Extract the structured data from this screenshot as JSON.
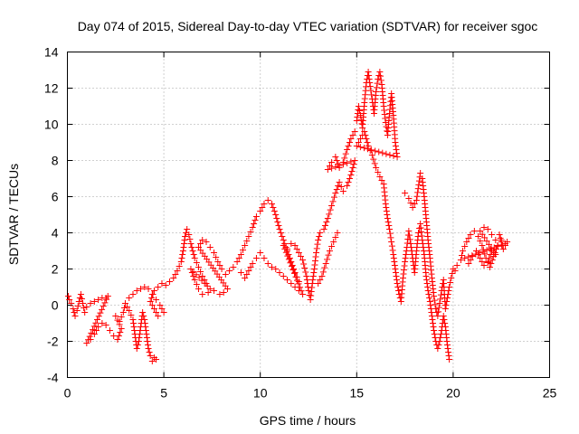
{
  "chart_data": {
    "type": "scatter",
    "title": "Day 074 of 2015, Sidereal Day-to-day VTEC variation (SDTVAR) for receiver sgoc",
    "xlabel": "GPS time / hours",
    "ylabel": "SDTVAR / TECUs",
    "xlim": [
      0,
      25
    ],
    "ylim": [
      -4,
      14
    ],
    "xticks": [
      0,
      5,
      10,
      15,
      20,
      25
    ],
    "yticks": [
      -4,
      -2,
      0,
      2,
      4,
      6,
      8,
      10,
      12,
      14
    ],
    "grid": true,
    "marker": "+",
    "color": "#ff0000",
    "series": [
      {
        "name": "SDTVAR",
        "points": [
          [
            0.05,
            0.5
          ],
          [
            0.1,
            0.3
          ],
          [
            0.2,
            0.1
          ],
          [
            0.3,
            -0.2
          ],
          [
            0.4,
            -0.6
          ],
          [
            0.5,
            -0.3
          ],
          [
            0.6,
            0.2
          ],
          [
            0.7,
            0.6
          ],
          [
            0.8,
            0.1
          ],
          [
            0.9,
            -0.4
          ],
          [
            1.0,
            -0.1
          ],
          [
            1.2,
            0.1
          ],
          [
            1.4,
            0.2
          ],
          [
            1.6,
            0.3
          ],
          [
            1.8,
            0.4
          ],
          [
            2.0,
            0.4
          ],
          [
            2.1,
            0.5
          ],
          [
            1.0,
            -2.1
          ],
          [
            1.2,
            -1.9
          ],
          [
            1.4,
            -1.6
          ],
          [
            1.6,
            -1.2
          ],
          [
            1.8,
            -1.0
          ],
          [
            2.0,
            -1.1
          ],
          [
            2.2,
            -1.4
          ],
          [
            2.4,
            -1.7
          ],
          [
            2.6,
            -1.9
          ],
          [
            2.8,
            -1.3
          ],
          [
            2.5,
            -0.6
          ],
          [
            2.7,
            -0.9
          ],
          [
            2.9,
            -0.4
          ],
          [
            3.0,
            0.1
          ],
          [
            3.2,
            -0.3
          ],
          [
            3.4,
            -0.8
          ],
          [
            3.5,
            -1.6
          ],
          [
            3.6,
            -2.4
          ],
          [
            3.7,
            -2.0
          ],
          [
            3.8,
            -1.2
          ],
          [
            3.9,
            -0.4
          ],
          [
            4.0,
            -0.8
          ],
          [
            4.1,
            -1.6
          ],
          [
            4.2,
            -2.4
          ],
          [
            4.3,
            -2.8
          ],
          [
            4.4,
            -3.1
          ],
          [
            4.5,
            -2.9
          ],
          [
            4.6,
            -3.0
          ],
          [
            3.2,
            0.4
          ],
          [
            3.4,
            0.6
          ],
          [
            3.6,
            0.8
          ],
          [
            3.8,
            0.9
          ],
          [
            4.0,
            1.0
          ],
          [
            4.2,
            0.9
          ],
          [
            4.4,
            0.6
          ],
          [
            4.6,
            0.3
          ],
          [
            4.8,
            0.0
          ],
          [
            5.0,
            -0.4
          ],
          [
            4.7,
            -0.6
          ],
          [
            4.3,
            0.2
          ],
          [
            4.5,
            0.8
          ],
          [
            4.7,
            1.0
          ],
          [
            4.9,
            1.2
          ],
          [
            5.1,
            1.1
          ],
          [
            5.3,
            1.3
          ],
          [
            5.5,
            1.5
          ],
          [
            5.7,
            1.9
          ],
          [
            5.9,
            2.4
          ],
          [
            6.0,
            3.0
          ],
          [
            6.1,
            3.8
          ],
          [
            6.2,
            4.2
          ],
          [
            6.3,
            3.9
          ],
          [
            6.4,
            3.4
          ],
          [
            6.5,
            3.0
          ],
          [
            6.6,
            2.6
          ],
          [
            6.8,
            2.1
          ],
          [
            7.0,
            1.6
          ],
          [
            7.2,
            1.2
          ],
          [
            7.4,
            0.9
          ],
          [
            6.4,
            2.0
          ],
          [
            6.6,
            1.4
          ],
          [
            6.8,
            0.9
          ],
          [
            7.0,
            0.6
          ],
          [
            7.3,
            0.7
          ],
          [
            7.6,
            0.8
          ],
          [
            7.9,
            0.6
          ],
          [
            8.1,
            0.7
          ],
          [
            8.3,
            0.9
          ],
          [
            6.8,
            3.2
          ],
          [
            7.0,
            3.6
          ],
          [
            7.2,
            3.5
          ],
          [
            7.4,
            3.2
          ],
          [
            7.6,
            2.9
          ],
          [
            7.8,
            2.4
          ],
          [
            8.0,
            2.0
          ],
          [
            8.2,
            1.7
          ],
          [
            8.4,
            1.9
          ],
          [
            8.6,
            2.1
          ],
          [
            8.8,
            2.4
          ],
          [
            9.0,
            2.8
          ],
          [
            9.2,
            3.3
          ],
          [
            9.4,
            3.8
          ],
          [
            9.6,
            4.3
          ],
          [
            9.8,
            4.9
          ],
          [
            10.0,
            5.2
          ],
          [
            10.2,
            5.6
          ],
          [
            10.4,
            5.8
          ],
          [
            10.6,
            5.6
          ],
          [
            10.8,
            5.0
          ],
          [
            11.0,
            4.2
          ],
          [
            11.2,
            3.6
          ],
          [
            11.4,
            3.0
          ],
          [
            11.6,
            2.4
          ],
          [
            11.8,
            1.8
          ],
          [
            12.0,
            1.3
          ],
          [
            9.0,
            1.8
          ],
          [
            9.2,
            1.5
          ],
          [
            9.4,
            1.9
          ],
          [
            9.6,
            2.3
          ],
          [
            9.8,
            2.6
          ],
          [
            10.0,
            2.9
          ],
          [
            10.2,
            2.6
          ],
          [
            10.4,
            2.3
          ],
          [
            10.6,
            2.1
          ],
          [
            10.8,
            2.0
          ],
          [
            11.0,
            1.8
          ],
          [
            11.2,
            1.6
          ],
          [
            11.4,
            1.4
          ],
          [
            11.6,
            1.2
          ],
          [
            11.8,
            1.0
          ],
          [
            12.0,
            0.8
          ],
          [
            12.2,
            0.6
          ],
          [
            11.2,
            3.3
          ],
          [
            11.4,
            3.1
          ],
          [
            11.6,
            3.4
          ],
          [
            11.8,
            3.3
          ],
          [
            12.0,
            2.9
          ],
          [
            12.2,
            2.5
          ],
          [
            12.4,
            1.6
          ],
          [
            12.5,
            0.8
          ],
          [
            12.6,
            0.3
          ],
          [
            12.7,
            1.2
          ],
          [
            12.8,
            2.0
          ],
          [
            12.9,
            2.9
          ],
          [
            13.0,
            3.6
          ],
          [
            13.1,
            4.0
          ],
          [
            13.3,
            4.2
          ],
          [
            13.5,
            4.8
          ],
          [
            13.7,
            5.5
          ],
          [
            13.9,
            6.2
          ],
          [
            14.1,
            6.8
          ],
          [
            14.3,
            6.3
          ],
          [
            14.5,
            6.6
          ],
          [
            14.7,
            7.2
          ],
          [
            14.9,
            8.0
          ],
          [
            13.5,
            7.5
          ],
          [
            13.7,
            7.9
          ],
          [
            13.9,
            8.2
          ],
          [
            14.1,
            7.6
          ],
          [
            14.3,
            7.9
          ],
          [
            14.5,
            8.6
          ],
          [
            14.7,
            9.2
          ],
          [
            14.9,
            9.6
          ],
          [
            13.0,
            1.2
          ],
          [
            13.2,
            1.6
          ],
          [
            13.4,
            2.3
          ],
          [
            13.6,
            3.0
          ],
          [
            13.8,
            3.5
          ],
          [
            14.0,
            4.0
          ],
          [
            15.0,
            10.2
          ],
          [
            15.1,
            11.0
          ],
          [
            15.2,
            10.5
          ],
          [
            15.3,
            9.8
          ],
          [
            15.4,
            11.2
          ],
          [
            15.5,
            12.3
          ],
          [
            15.6,
            12.9
          ],
          [
            15.7,
            12.1
          ],
          [
            15.8,
            11.4
          ],
          [
            15.9,
            10.6
          ],
          [
            16.0,
            11.8
          ],
          [
            16.1,
            12.5
          ],
          [
            16.2,
            12.9
          ],
          [
            16.3,
            12.2
          ],
          [
            16.4,
            11.0
          ],
          [
            16.5,
            10.1
          ],
          [
            16.6,
            9.4
          ],
          [
            16.7,
            10.6
          ],
          [
            16.8,
            11.7
          ],
          [
            16.9,
            10.5
          ],
          [
            17.0,
            9.0
          ],
          [
            17.1,
            8.2
          ],
          [
            15.0,
            8.8
          ],
          [
            15.2,
            9.2
          ],
          [
            15.4,
            9.6
          ],
          [
            15.6,
            8.8
          ],
          [
            15.8,
            8.3
          ],
          [
            16.0,
            7.6
          ],
          [
            16.2,
            7.1
          ],
          [
            16.4,
            6.7
          ],
          [
            16.5,
            5.6
          ],
          [
            16.6,
            4.8
          ],
          [
            16.7,
            4.2
          ],
          [
            16.8,
            3.5
          ],
          [
            16.9,
            2.8
          ],
          [
            17.0,
            2.0
          ],
          [
            17.1,
            1.2
          ],
          [
            17.2,
            0.6
          ],
          [
            17.3,
            0.2
          ],
          [
            17.4,
            1.5
          ],
          [
            17.5,
            2.4
          ],
          [
            17.6,
            3.2
          ],
          [
            17.7,
            4.1
          ],
          [
            17.8,
            3.4
          ],
          [
            17.9,
            2.6
          ],
          [
            18.0,
            1.8
          ],
          [
            18.1,
            3.0
          ],
          [
            18.2,
            4.0
          ],
          [
            18.3,
            4.5
          ],
          [
            18.4,
            3.6
          ],
          [
            18.5,
            2.8
          ],
          [
            18.6,
            1.6
          ],
          [
            18.7,
            0.8
          ],
          [
            18.8,
            0.2
          ],
          [
            18.9,
            -0.6
          ],
          [
            19.0,
            -1.4
          ],
          [
            19.1,
            -2.0
          ],
          [
            19.2,
            -2.4
          ],
          [
            19.3,
            -2.0
          ],
          [
            19.4,
            -1.4
          ],
          [
            19.5,
            -0.6
          ],
          [
            19.6,
            -1.2
          ],
          [
            19.7,
            -2.2
          ],
          [
            19.8,
            -3.0
          ],
          [
            17.5,
            6.2
          ],
          [
            17.7,
            5.9
          ],
          [
            17.9,
            5.4
          ],
          [
            18.1,
            5.8
          ],
          [
            18.3,
            7.3
          ],
          [
            18.4,
            7.0
          ],
          [
            18.5,
            6.0
          ],
          [
            18.6,
            4.8
          ],
          [
            18.7,
            3.6
          ],
          [
            18.8,
            2.6
          ],
          [
            18.9,
            1.5
          ],
          [
            19.0,
            0.5
          ],
          [
            19.1,
            -0.2
          ],
          [
            19.2,
            -0.6
          ],
          [
            19.3,
            0.1
          ],
          [
            19.4,
            0.8
          ],
          [
            19.5,
            1.4
          ],
          [
            19.6,
            -0.2
          ],
          [
            19.7,
            0.4
          ],
          [
            19.8,
            1.0
          ],
          [
            19.9,
            1.5
          ],
          [
            20.0,
            2.0
          ],
          [
            20.1,
            1.9
          ],
          [
            20.2,
            2.2
          ],
          [
            20.4,
            2.5
          ],
          [
            20.5,
            3.0
          ],
          [
            20.7,
            3.5
          ],
          [
            20.9,
            3.9
          ],
          [
            21.1,
            4.1
          ],
          [
            21.3,
            3.8
          ],
          [
            21.5,
            3.3
          ],
          [
            21.7,
            2.6
          ],
          [
            21.9,
            2.1
          ],
          [
            22.1,
            2.7
          ],
          [
            22.3,
            3.3
          ],
          [
            22.5,
            3.6
          ],
          [
            22.7,
            3.4
          ],
          [
            20.6,
            2.6
          ],
          [
            20.8,
            2.3
          ],
          [
            21.0,
            2.7
          ],
          [
            21.2,
            3.0
          ],
          [
            21.4,
            2.6
          ],
          [
            21.6,
            2.2
          ],
          [
            21.8,
            2.4
          ],
          [
            22.0,
            3.0
          ],
          [
            22.2,
            2.8
          ],
          [
            21.4,
            4.1
          ],
          [
            21.6,
            4.3
          ],
          [
            21.8,
            4.2
          ],
          [
            22.0,
            3.9
          ],
          [
            22.2,
            3.6
          ],
          [
            22.4,
            3.9
          ],
          [
            22.6,
            3.1
          ],
          [
            22.8,
            3.5
          ]
        ]
      }
    ]
  }
}
